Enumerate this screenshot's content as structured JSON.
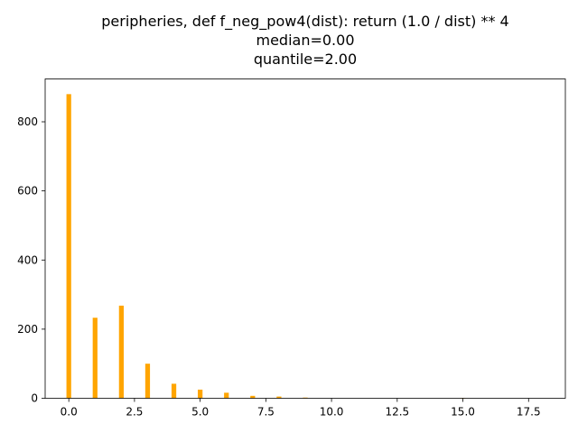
{
  "chart_data": {
    "type": "bar",
    "title_lines": [
      "peripheries, def f_neg_pow4(dist): return (1.0 / dist) ** 4",
      "median=0.00",
      "quantile=2.00"
    ],
    "xlabel": "",
    "ylabel": "",
    "xlim": [
      -0.9,
      18.9
    ],
    "ylim": [
      0,
      924
    ],
    "x_ticks": [
      0.0,
      2.5,
      5.0,
      7.5,
      10.0,
      12.5,
      15.0,
      17.5
    ],
    "x_tick_labels": [
      "0.0",
      "2.5",
      "5.0",
      "7.5",
      "10.0",
      "12.5",
      "15.0",
      "17.5"
    ],
    "y_ticks": [
      0,
      200,
      400,
      600,
      800
    ],
    "y_tick_labels": [
      "0",
      "200",
      "400",
      "600",
      "800"
    ],
    "bar_width": 0.18,
    "color": "#ffa500",
    "grid": false,
    "series": [
      {
        "x": [
          0,
          1,
          2,
          3,
          4,
          5,
          6,
          7,
          8,
          9,
          15
        ],
        "values": [
          880,
          233,
          268,
          100,
          42,
          25,
          16,
          7,
          5,
          2,
          1
        ]
      }
    ]
  }
}
